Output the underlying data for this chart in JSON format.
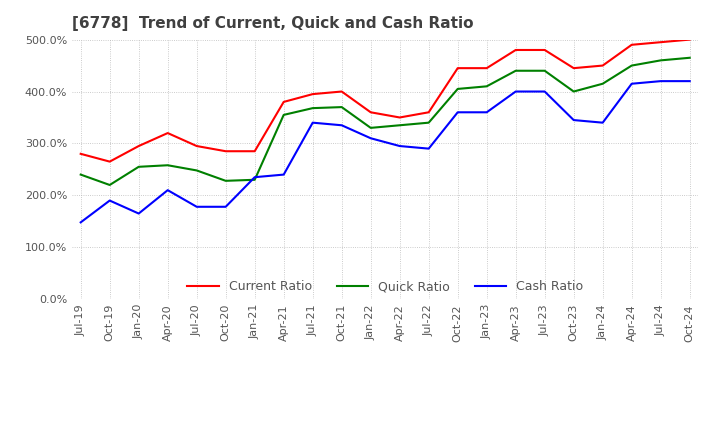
{
  "title": "[6778]  Trend of Current, Quick and Cash Ratio",
  "x_labels": [
    "Jul-19",
    "Oct-19",
    "Jan-20",
    "Apr-20",
    "Jul-20",
    "Oct-20",
    "Jan-21",
    "Apr-21",
    "Jul-21",
    "Oct-21",
    "Jan-22",
    "Apr-22",
    "Jul-22",
    "Oct-22",
    "Jan-23",
    "Apr-23",
    "Jul-23",
    "Oct-23",
    "Jan-24",
    "Apr-24",
    "Jul-24",
    "Oct-24"
  ],
  "current_ratio": [
    280,
    265,
    295,
    320,
    295,
    285,
    285,
    380,
    395,
    400,
    360,
    350,
    360,
    445,
    445,
    480,
    480,
    445,
    450,
    490,
    495,
    500
  ],
  "quick_ratio": [
    240,
    220,
    255,
    258,
    248,
    228,
    230,
    355,
    368,
    370,
    330,
    335,
    340,
    405,
    410,
    440,
    440,
    400,
    415,
    450,
    460,
    465
  ],
  "cash_ratio": [
    148,
    190,
    165,
    210,
    178,
    178,
    235,
    240,
    340,
    335,
    310,
    295,
    290,
    360,
    360,
    400,
    400,
    345,
    340,
    415,
    420,
    420
  ],
  "current_color": "#ff0000",
  "quick_color": "#008000",
  "cash_color": "#0000ff",
  "ylim": [
    0,
    500
  ],
  "yticks": [
    0,
    100,
    200,
    300,
    400,
    500
  ],
  "background_color": "#ffffff",
  "grid_color": "#aaaaaa",
  "title_color": "#404040",
  "title_fontsize": 11,
  "legend_fontsize": 9,
  "tick_fontsize": 8
}
